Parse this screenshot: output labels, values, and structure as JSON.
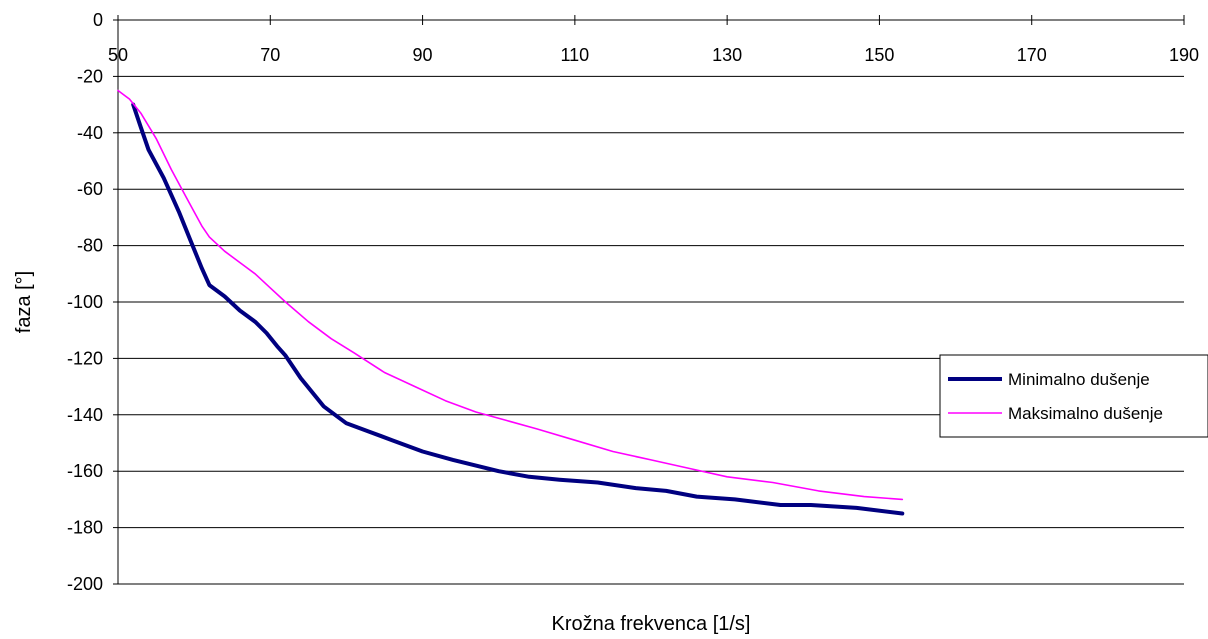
{
  "chart_data": {
    "type": "line",
    "title": "",
    "xlabel": "Krožna frekvenca [1/s]",
    "ylabel": "faza [°]",
    "xlim": [
      50,
      190
    ],
    "ylim": [
      -200,
      0
    ],
    "x_ticks": [
      50,
      70,
      90,
      110,
      130,
      150,
      170,
      190
    ],
    "y_ticks": [
      0,
      -20,
      -40,
      -60,
      -80,
      -100,
      -120,
      -140,
      -160,
      -180,
      -200
    ],
    "grid": "horizontal",
    "legend_position": "right",
    "series": [
      {
        "name": "Minimalno dušenje",
        "color": "#000080",
        "x": [
          52,
          53,
          54,
          56,
          58,
          59.5,
          61,
          62,
          64,
          66,
          68,
          69.5,
          71,
          72,
          74,
          77,
          80,
          83,
          86,
          90,
          94,
          97,
          100,
          104,
          108,
          113,
          118,
          122,
          126,
          131,
          137,
          141,
          147,
          153
        ],
        "values": [
          -30,
          -38,
          -46,
          -56,
          -68,
          -78,
          -88,
          -94,
          -98,
          -103,
          -107,
          -111,
          -116,
          -119,
          -127,
          -137,
          -143,
          -146,
          -149,
          -153,
          -156,
          -158,
          -160,
          -162,
          -163,
          -164,
          -166,
          -167,
          -169,
          -170,
          -172,
          -172,
          -173,
          -175
        ]
      },
      {
        "name": "Maksimalno dušenje",
        "color": "#ff00ff",
        "x": [
          50,
          51.5,
          53,
          55,
          57,
          59,
          60,
          61,
          62,
          64,
          66,
          68,
          70,
          72,
          75,
          78,
          81,
          85,
          89,
          93,
          97,
          101,
          105,
          110,
          115,
          120,
          125,
          130,
          136,
          142,
          148,
          153
        ],
        "values": [
          -25,
          -28,
          -33,
          -42,
          -53,
          -63,
          -68,
          -73,
          -77,
          -82,
          -86,
          -90,
          -95,
          -100,
          -107,
          -113,
          -118,
          -125,
          -130,
          -135,
          -139,
          -142,
          -145,
          -149,
          -153,
          -156,
          -159,
          -162,
          -164,
          -167,
          -169,
          -170
        ]
      }
    ]
  }
}
